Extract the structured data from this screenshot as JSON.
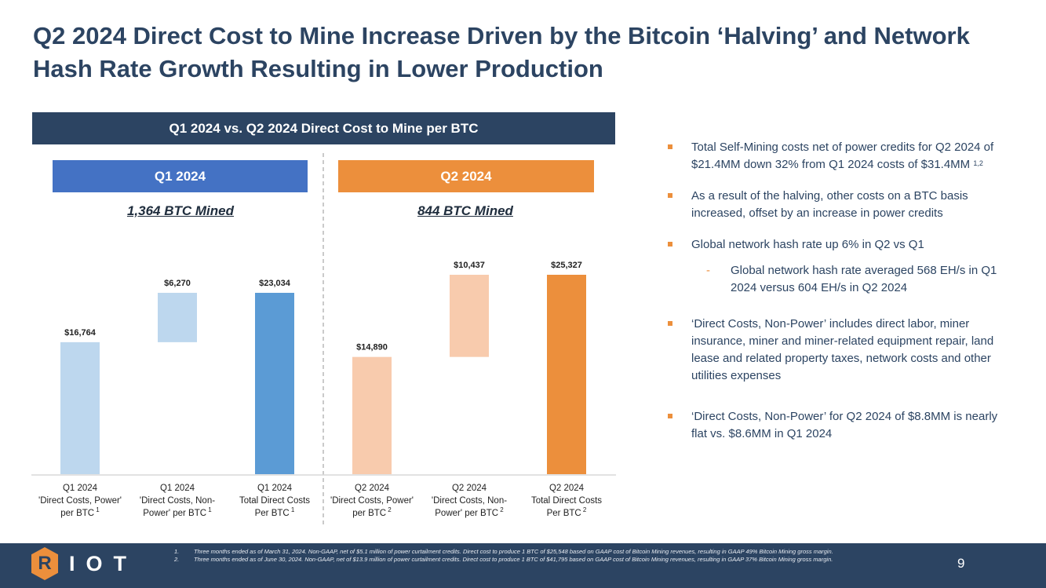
{
  "title": "Q2 2024 Direct Cost to Mine Increase Driven by the Bitcoin ‘Halving’ and Network Hash Rate Growth Resulting in Lower Production",
  "chart_data": {
    "type": "bar",
    "subtype": "waterfall",
    "title": "Q1 2024 vs. Q2 2024 Direct Cost to Mine per BTC",
    "panels": [
      {
        "label": "Q1 2024",
        "subtitle": "1,364 BTC Mined",
        "color_power": "#bdd7ee",
        "color_nonpower": "#bdd7ee",
        "color_total": "#5b9bd5",
        "bars": [
          {
            "category": [
              "Q1 2024",
              "'Direct Costs, Power'",
              "per BTC"
            ],
            "sup": "1",
            "base": 0,
            "value": 16764,
            "label": "$16,764",
            "kind": "power"
          },
          {
            "category": [
              "Q1 2024",
              "'Direct Costs, Non-",
              "Power' per BTC"
            ],
            "sup": "1",
            "base": 16764,
            "value": 6270,
            "label": "$6,270",
            "kind": "nonpower"
          },
          {
            "category": [
              "Q1 2024",
              "Total Direct Costs",
              "Per BTC"
            ],
            "sup": "1",
            "base": 0,
            "value": 23034,
            "label": "$23,034",
            "kind": "total"
          }
        ]
      },
      {
        "label": "Q2 2024",
        "subtitle": "844 BTC Mined",
        "color_power": "#f8cbad",
        "color_nonpower": "#f8cbad",
        "color_total": "#ec8f3c",
        "bars": [
          {
            "category": [
              "Q2 2024",
              "'Direct Costs, Power'",
              "per BTC"
            ],
            "sup": "2",
            "base": 0,
            "value": 14890,
            "label": "$14,890",
            "kind": "power"
          },
          {
            "category": [
              "Q2 2024",
              "'Direct Costs, Non-",
              "Power' per BTC"
            ],
            "sup": "2",
            "base": 14890,
            "value": 10437,
            "label": "$10,437",
            "kind": "nonpower"
          },
          {
            "category": [
              "Q2 2024",
              "Total Direct Costs",
              "Per BTC"
            ],
            "sup": "2",
            "base": 0,
            "value": 25327,
            "label": "$25,327",
            "kind": "total"
          }
        ]
      }
    ],
    "ylim": [
      0,
      27000
    ],
    "grid": false
  },
  "bullets": {
    "b1": "Total Self-Mining costs net of power credits for Q2 2024 of $21.4MM down 32% from Q1 2024 costs of $31.4MM",
    "b1_sup": "1,2",
    "b2": "As a result of the halving, other costs on a BTC basis increased, offset by an increase in power credits",
    "b3": "Global network hash rate up 6% in Q2 vs Q1",
    "b3_sub": "Global network hash rate averaged 568 EH/s in Q1 2024 versus 604 EH/s in Q2 2024",
    "b4": "‘Direct Costs, Non-Power’ includes direct labor, miner insurance, miner and miner-related equipment repair, land lease and related property taxes, network costs and other utilities expenses",
    "b5": "‘Direct Costs, Non-Power’ for Q2 2024 of $8.8MM is nearly flat vs. $8.6MM in Q1 2024"
  },
  "footer": {
    "logo_letter": "R",
    "logo_text": "IOT",
    "notes": [
      {
        "n": "1.",
        "text": "Three months ended as of March 31, 2024. Non-GAAP, net of $5.1 million of power curtailment credits. Direct cost to produce 1 BTC of $25,548 based on GAAP cost of Bitcoin Mining revenues, resulting in GAAP 49% Bitcoin Mining gross margin."
      },
      {
        "n": "2.",
        "text": "Three months ended as of June 30, 2024. Non-GAAP, net of $13.9 million of power curtailment credits. Direct cost to produce 1 BTC of $41,795 based on GAAP cost of Bitcoin Mining revenues, resulting in GAAP 37% Bitcoin Mining gross margin."
      }
    ],
    "page": "9"
  }
}
